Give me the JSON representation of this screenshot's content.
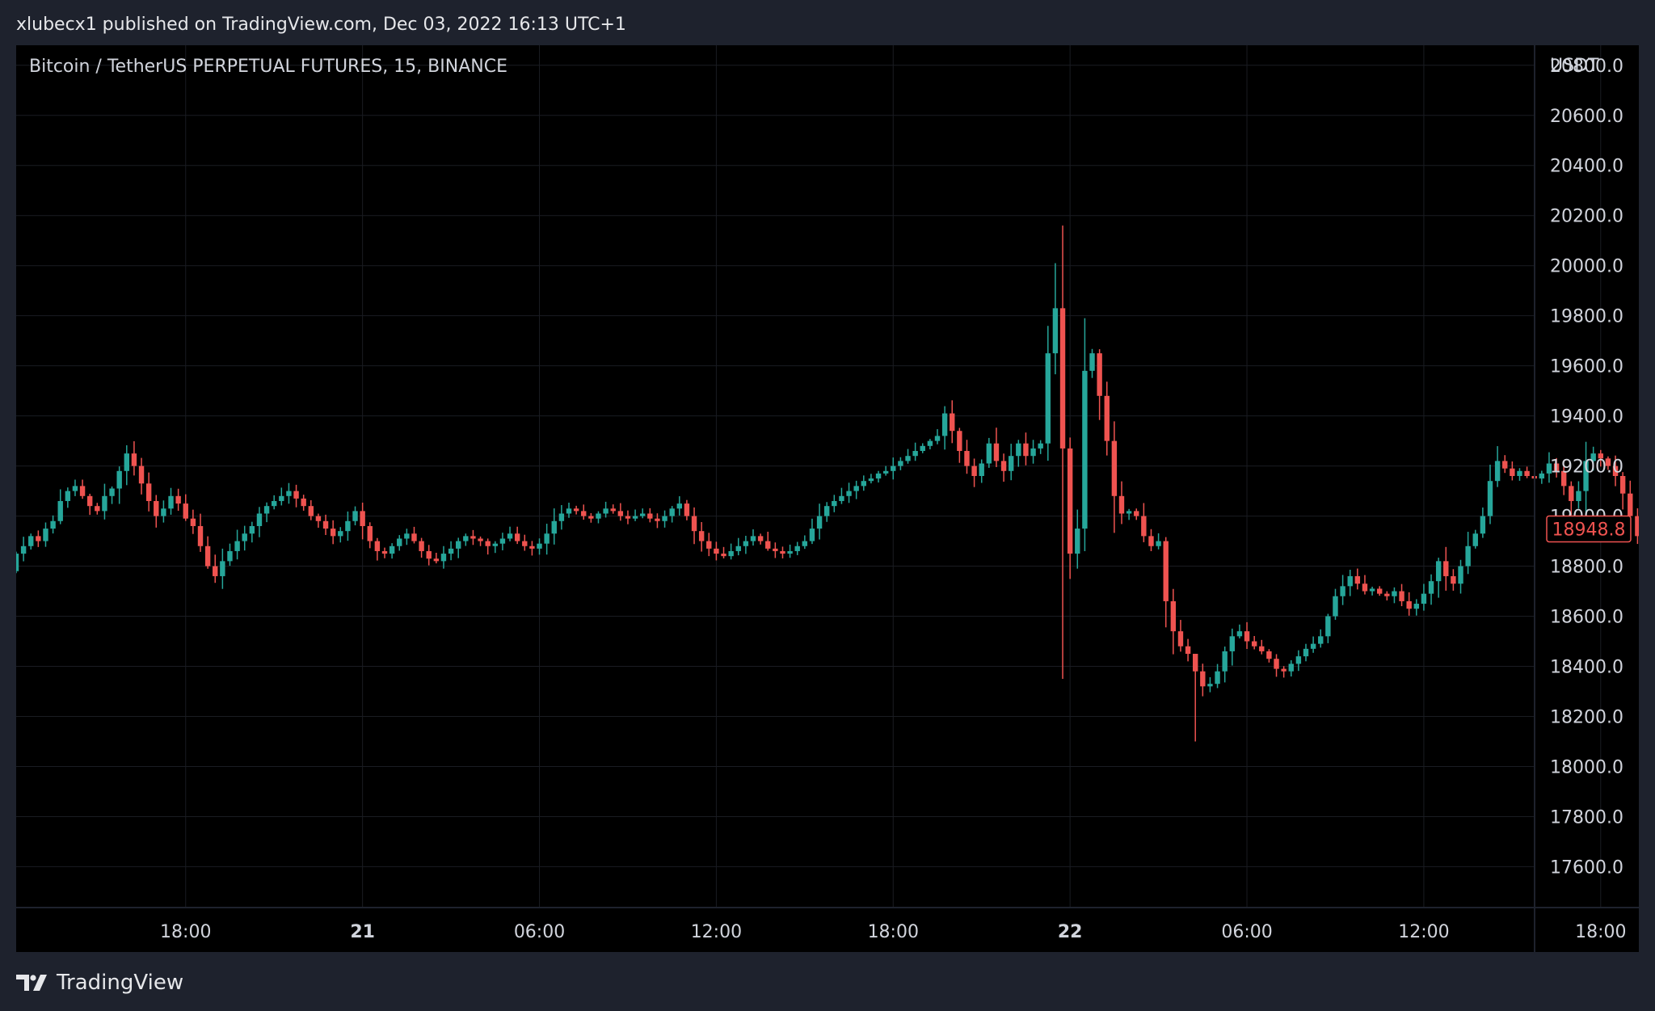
{
  "header": {
    "published_text": "xlubecx1 published on TradingView.com, Dec 03, 2022 16:13 UTC+1"
  },
  "chart_title": "Bitcoin / TetherUS PERPETUAL FUTURES, 15, BINANCE",
  "footer": {
    "brand": "TradingView",
    "logo_icon": "tradingview-logo-icon"
  },
  "colors": {
    "up": "#26a69a",
    "down": "#ef5350",
    "background": "#000000",
    "grid": "#1a1c22",
    "frame": "#1e222d"
  },
  "chart_data": {
    "type": "candlestick",
    "title": "Bitcoin / TetherUS PERPETUAL FUTURES, 15, BINANCE",
    "currency_label": "USDT",
    "last_price": "18948.8",
    "last_price_value": 18948.8,
    "ylim": [
      17440,
      20880
    ],
    "y_ticks": [
      {
        "v": 17600,
        "label": "17600.0"
      },
      {
        "v": 17800,
        "label": "17800.0"
      },
      {
        "v": 18000,
        "label": "18000.0"
      },
      {
        "v": 18200,
        "label": "18200.0"
      },
      {
        "v": 18400,
        "label": "18400.0"
      },
      {
        "v": 18600,
        "label": "18600.0"
      },
      {
        "v": 18800,
        "label": "18800.0"
      },
      {
        "v": 19000,
        "label": "19000.0"
      },
      {
        "v": 19200,
        "label": "19200.0"
      },
      {
        "v": 19400,
        "label": "19400.0"
      },
      {
        "v": 19600,
        "label": "19600.0"
      },
      {
        "v": 19800,
        "label": "19800.0"
      },
      {
        "v": 20000,
        "label": "20000.0"
      },
      {
        "v": 20200,
        "label": "20200.0"
      },
      {
        "v": 20400,
        "label": "20400.0"
      },
      {
        "v": 20600,
        "label": "20600.0"
      },
      {
        "v": 20800,
        "label": "20800.0"
      }
    ],
    "x_ticks": [
      {
        "i": 23,
        "label": "18:00",
        "bold": false
      },
      {
        "i": 47,
        "label": "21",
        "bold": true
      },
      {
        "i": 71,
        "label": "06:00",
        "bold": false
      },
      {
        "i": 95,
        "label": "12:00",
        "bold": false
      },
      {
        "i": 119,
        "label": "18:00",
        "bold": false
      },
      {
        "i": 143,
        "label": "22",
        "bold": true
      },
      {
        "i": 167,
        "label": "06:00",
        "bold": false
      },
      {
        "i": 191,
        "label": "12:00",
        "bold": false
      },
      {
        "i": 215,
        "label": "18:00",
        "bold": false
      }
    ],
    "closes": [
      18850,
      18880,
      18920,
      18900,
      18950,
      18980,
      19060,
      19100,
      19120,
      19080,
      19040,
      19020,
      19080,
      19110,
      19180,
      19250,
      19200,
      19130,
      19060,
      19000,
      19030,
      19080,
      19050,
      18990,
      18960,
      18880,
      18800,
      18760,
      18820,
      18860,
      18900,
      18930,
      18960,
      19010,
      19040,
      19060,
      19080,
      19100,
      19070,
      19040,
      19000,
      18980,
      18950,
      18920,
      18940,
      18980,
      19020,
      18960,
      18900,
      18860,
      18850,
      18880,
      18910,
      18930,
      18900,
      18860,
      18830,
      18820,
      18850,
      18870,
      18900,
      18920,
      18910,
      18900,
      18880,
      18890,
      18910,
      18930,
      18900,
      18880,
      18870,
      18890,
      18930,
      18980,
      19010,
      19030,
      19020,
      19000,
      18990,
      19010,
      19030,
      19020,
      19000,
      18990,
      19000,
      19010,
      18990,
      18980,
      19000,
      19030,
      19050,
      19000,
      18940,
      18900,
      18870,
      18850,
      18840,
      18860,
      18880,
      18900,
      18920,
      18900,
      18870,
      18860,
      18850,
      18860,
      18880,
      18900,
      18950,
      19000,
      19040,
      19060,
      19080,
      19100,
      19120,
      19140,
      19150,
      19170,
      19180,
      19200,
      19220,
      19240,
      19260,
      19280,
      19300,
      19320,
      19410,
      19340,
      19260,
      19200,
      19160,
      19210,
      19290,
      19220,
      19180,
      19240,
      19290,
      19240,
      19270,
      19290,
      19650,
      19830,
      19270,
      18850,
      18950,
      19580,
      19650,
      19480,
      19300,
      19080,
      19010,
      19020,
      19000,
      18920,
      18880,
      18900,
      18660,
      18540,
      18480,
      18450,
      18380,
      18320,
      18330,
      18380,
      18460,
      18520,
      18540,
      18500,
      18480,
      18460,
      18430,
      18390,
      18380,
      18410,
      18440,
      18470,
      18490,
      18520,
      18600,
      18680,
      18720,
      18760,
      18730,
      18700,
      18710,
      18690,
      18680,
      18700,
      18660,
      18630,
      18650,
      18690,
      18740,
      18820,
      18760,
      18730,
      18800,
      18880,
      18930,
      19000,
      19140,
      19220,
      19190,
      19160,
      19180,
      19160,
      19150,
      19170,
      19210,
      19180,
      19120,
      19060,
      19100,
      19220,
      19250,
      19230,
      19200,
      19160,
      19090,
      19000,
      18920,
      18980,
      19020,
      18960,
      18880,
      18840,
      18900,
      18940,
      18980,
      18830,
      18900,
      19000,
      19030,
      18980
    ]
  }
}
